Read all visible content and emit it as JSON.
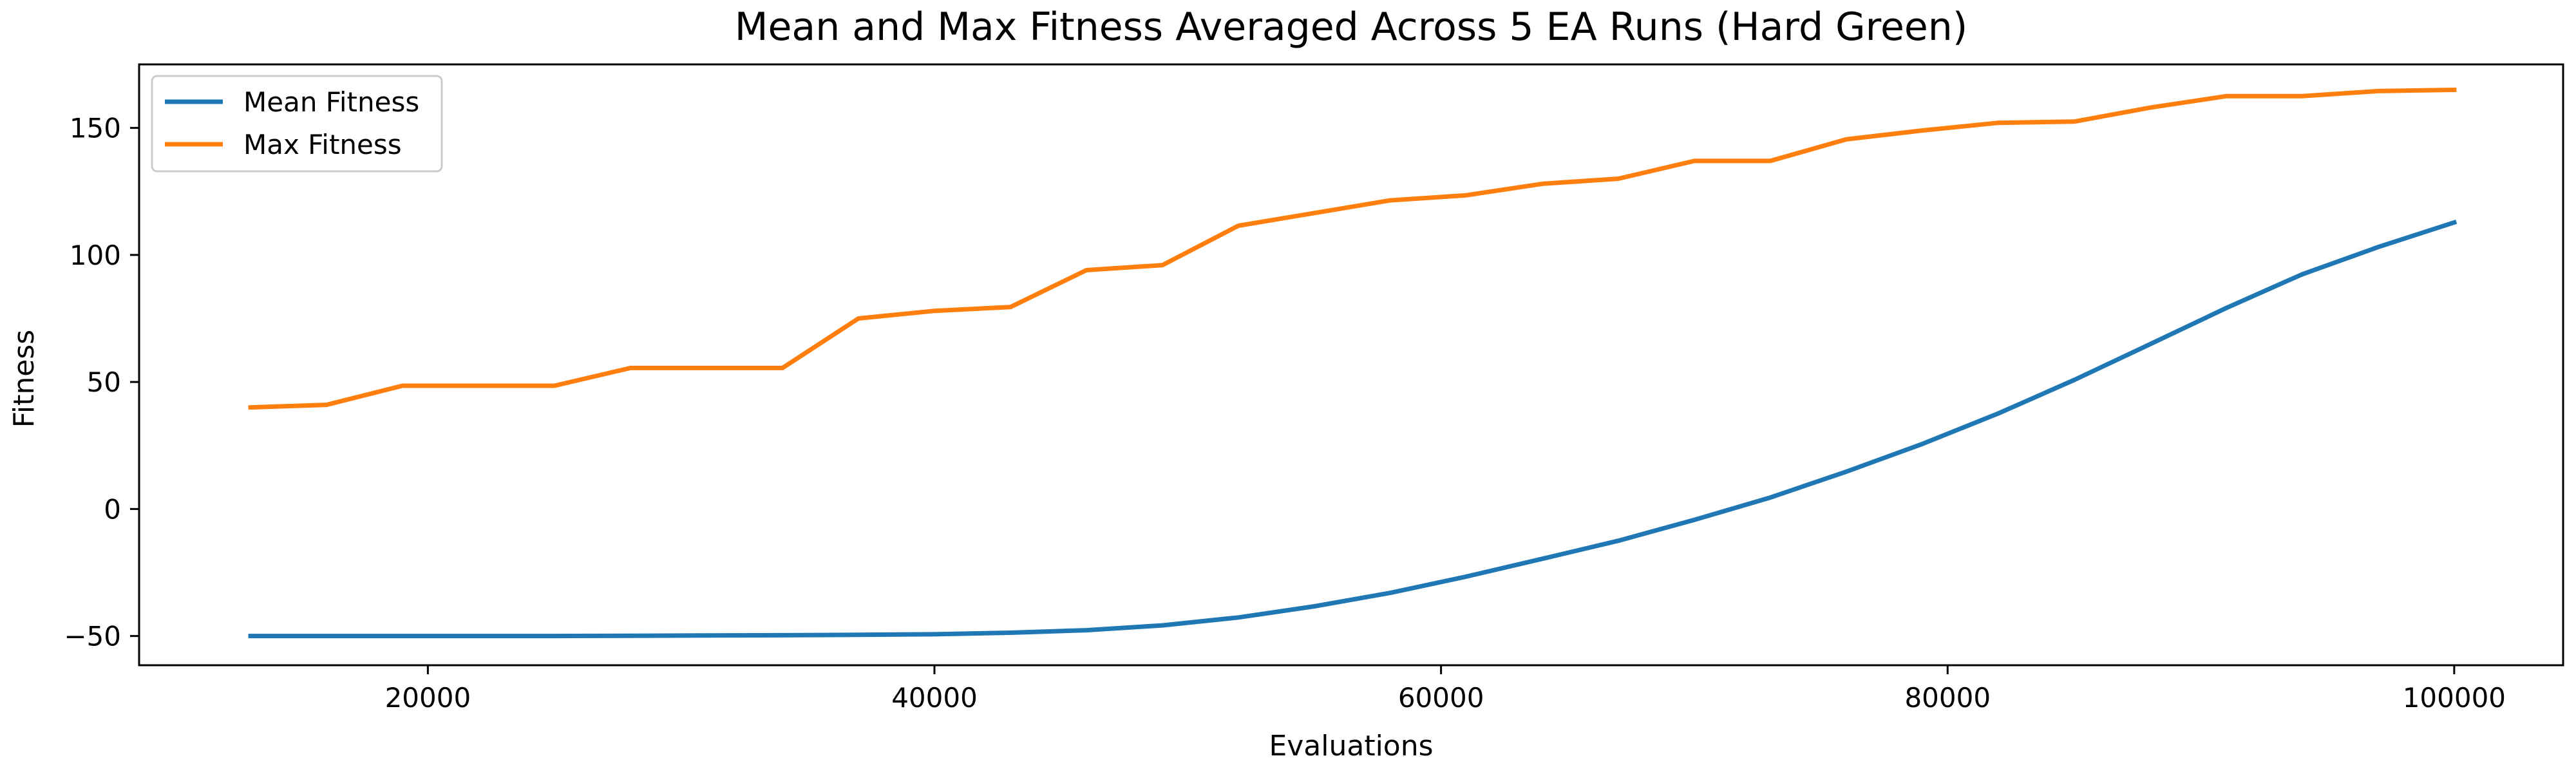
{
  "chart_data": {
    "type": "line",
    "title": "Mean and Max Fitness Averaged Across 5 EA Runs (Hard Green)",
    "xlabel": "Evaluations",
    "ylabel": "Fitness",
    "xlim": [
      8600,
      104300
    ],
    "ylim": [
      -61.5,
      175
    ],
    "xticks": [
      20000,
      40000,
      60000,
      80000,
      100000
    ],
    "yticks": [
      -50,
      0,
      50,
      100,
      150
    ],
    "grid": false,
    "legend_position": "top-left",
    "x": [
      13000,
      16000,
      19000,
      22000,
      25000,
      28000,
      31000,
      34000,
      37000,
      40000,
      43000,
      46000,
      49000,
      52000,
      55000,
      58000,
      61000,
      64000,
      67000,
      70000,
      73000,
      76000,
      79000,
      82000,
      85000,
      88000,
      91000,
      94000,
      97000,
      100000
    ],
    "series": [
      {
        "name": "Mean Fitness",
        "color": "#1f77b4",
        "values": [
          -50,
          -50,
          -50,
          -50,
          -50,
          -49.9,
          -49.8,
          -49.7,
          -49.5,
          -49.3,
          -48.7,
          -47.7,
          -45.8,
          -42.7,
          -38.3,
          -33,
          -26.6,
          -19.6,
          -12.5,
          -4.3,
          4.5,
          14.7,
          25.6,
          37.6,
          50.8,
          64.9,
          79.1,
          92.4,
          103.1,
          112.8
        ]
      },
      {
        "name": "Max Fitness",
        "color": "#ff7f0e",
        "values": [
          40,
          41,
          48.5,
          48.5,
          48.5,
          55.5,
          55.5,
          55.5,
          75,
          78,
          79.5,
          94,
          96,
          111.5,
          116.5,
          121.5,
          123.5,
          128,
          130,
          137,
          137,
          145.5,
          149,
          152,
          152.5,
          158,
          162.5,
          162.5,
          164.5,
          165
        ]
      }
    ]
  }
}
